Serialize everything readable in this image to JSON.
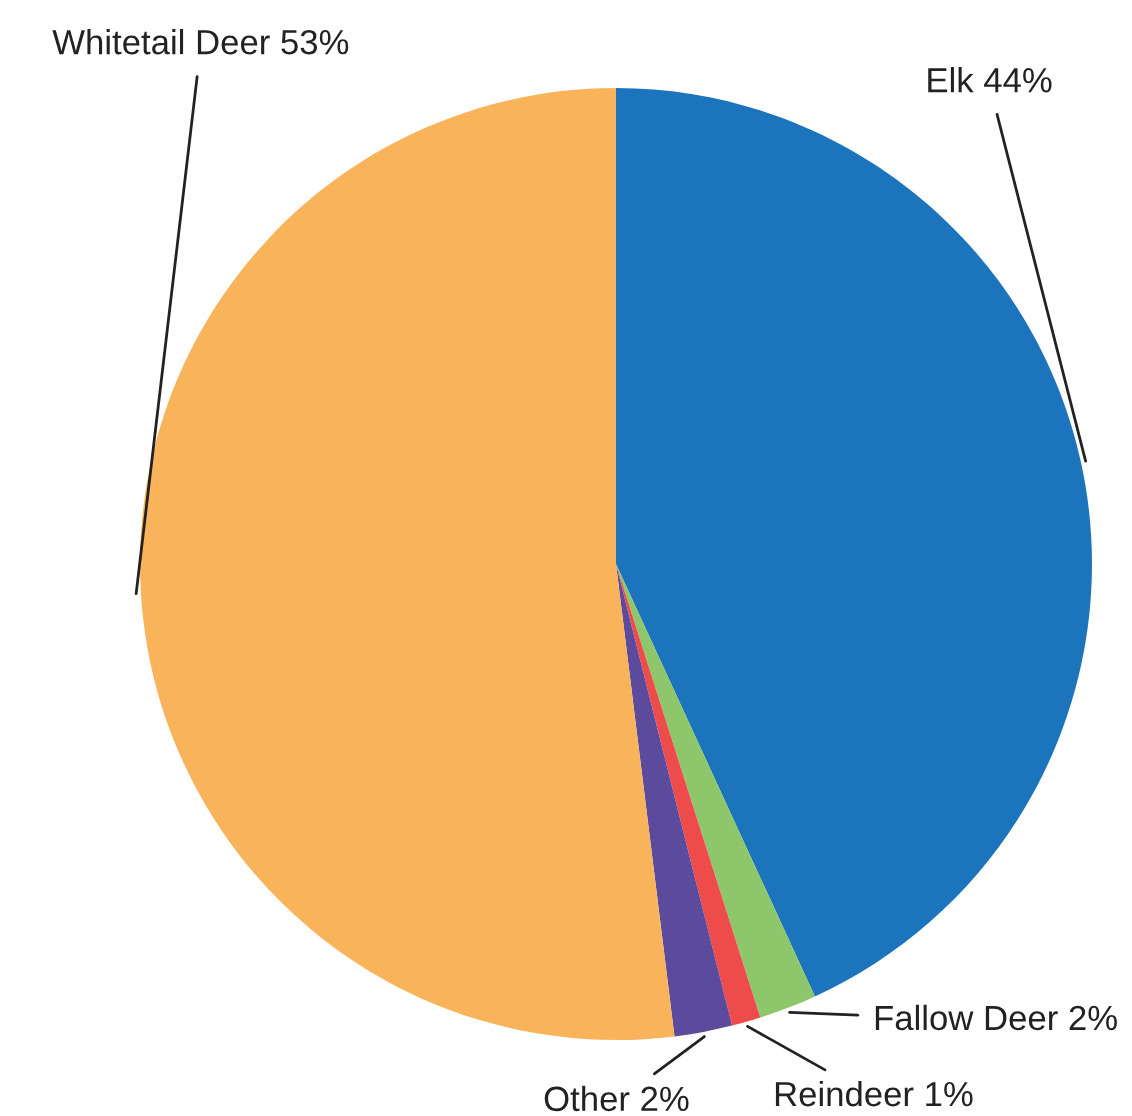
{
  "chart_data": {
    "type": "pie",
    "categories": [
      "Elk",
      "Fallow Deer",
      "Reindeer",
      "Other",
      "Whitetail Deer"
    ],
    "values": [
      44,
      2,
      1,
      2,
      53
    ],
    "value_labels": [
      "44%",
      "2%",
      "1%",
      "2%",
      "53%"
    ],
    "colors": [
      "#1c75bc",
      "#8dc66b",
      "#ee4b4b",
      "#5c4b9c",
      "#f9b45b"
    ]
  }
}
